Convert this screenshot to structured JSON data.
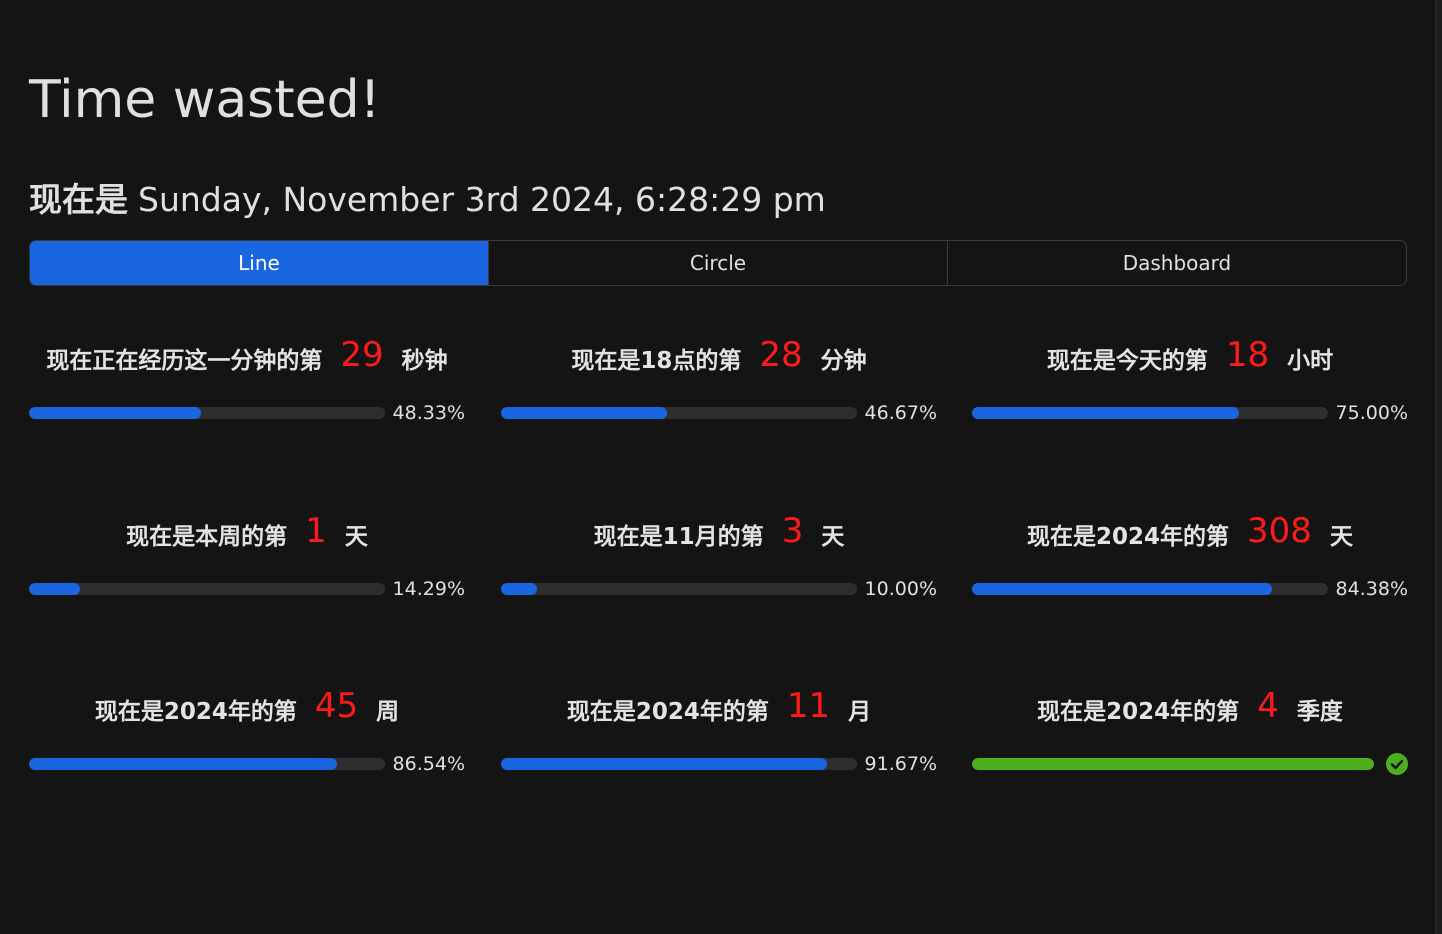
{
  "title": "Time wasted!",
  "subtitle": {
    "prefix": "现在是",
    "datetime": "Sunday, November 3rd 2024, 6:28:29 pm"
  },
  "tabs": [
    {
      "label": "Line",
      "active": true
    },
    {
      "label": "Circle",
      "active": false
    },
    {
      "label": "Dashboard",
      "active": false
    }
  ],
  "colors": {
    "background": "#141414",
    "accent": "#1a66e0",
    "number": "#ff1a1a",
    "success": "#4caf1e",
    "track": "#2e2e2e"
  },
  "progress": [
    {
      "pre": "现在正在经历这一分钟的第",
      "num": "29",
      "unit": "秒钟",
      "percent": "48.33%",
      "fraction": 0.4833,
      "done": false
    },
    {
      "pre": "现在是18点的第",
      "num": "28",
      "unit": "分钟",
      "percent": "46.67%",
      "fraction": 0.4667,
      "done": false
    },
    {
      "pre": "现在是今天的第",
      "num": "18",
      "unit": "小时",
      "percent": "75.00%",
      "fraction": 0.75,
      "done": false
    },
    {
      "pre": "现在是本周的第",
      "num": "1",
      "unit": "天",
      "percent": "14.29%",
      "fraction": 0.1429,
      "done": false
    },
    {
      "pre": "现在是11月的第",
      "num": "3",
      "unit": "天",
      "percent": "10.00%",
      "fraction": 0.1,
      "done": false
    },
    {
      "pre": "现在是2024年的第",
      "num": "308",
      "unit": "天",
      "percent": "84.38%",
      "fraction": 0.8438,
      "done": false
    },
    {
      "pre": "现在是2024年的第",
      "num": "45",
      "unit": "周",
      "percent": "86.54%",
      "fraction": 0.8654,
      "done": false
    },
    {
      "pre": "现在是2024年的第",
      "num": "11",
      "unit": "月",
      "percent": "91.67%",
      "fraction": 0.9167,
      "done": false
    },
    {
      "pre": "现在是2024年的第",
      "num": "4",
      "unit": "季度",
      "percent": "",
      "fraction": 1.0,
      "done": true,
      "status_icon": "check-circle-icon"
    }
  ]
}
